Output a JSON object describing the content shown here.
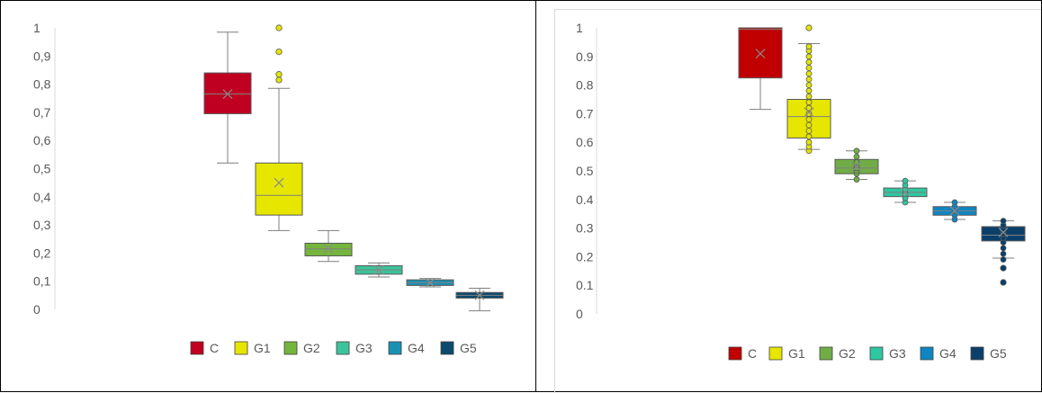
{
  "chart_data": [
    {
      "type": "box",
      "ylim": [
        0,
        1
      ],
      "y_ticks": [
        "0",
        "0,1",
        "0,2",
        "0,3",
        "0,4",
        "0,5",
        "0,6",
        "0,7",
        "0,8",
        "0,9",
        "1"
      ],
      "legend_placement": "bottom",
      "series": [
        {
          "name": "C",
          "color": "#C00020",
          "min": 0.52,
          "q1": 0.695,
          "median": 0.765,
          "mean": 0.765,
          "q3": 0.84,
          "max": 0.985,
          "outliers": []
        },
        {
          "name": "G1",
          "color": "#E6E600",
          "min": 0.28,
          "q1": 0.335,
          "median": 0.405,
          "mean": 0.45,
          "q3": 0.52,
          "max": 0.785,
          "outliers": [
            0.815,
            0.835,
            0.915,
            1.0
          ]
        },
        {
          "name": "G2",
          "color": "#74B53C",
          "min": 0.17,
          "q1": 0.19,
          "median": 0.215,
          "mean": 0.215,
          "q3": 0.235,
          "max": 0.28,
          "outliers": []
        },
        {
          "name": "G3",
          "color": "#3DC49A",
          "min": 0.115,
          "q1": 0.125,
          "median": 0.14,
          "mean": 0.14,
          "q3": 0.155,
          "max": 0.165,
          "outliers": []
        },
        {
          "name": "G4",
          "color": "#1A91B3",
          "min": 0.08,
          "q1": 0.085,
          "median": 0.095,
          "mean": 0.095,
          "q3": 0.105,
          "max": 0.11,
          "outliers": []
        },
        {
          "name": "G5",
          "color": "#0C4A6E",
          "min": -0.005,
          "q1": 0.04,
          "median": 0.05,
          "mean": 0.05,
          "q3": 0.06,
          "max": 0.075,
          "outliers": []
        }
      ]
    },
    {
      "type": "box",
      "ylim": [
        0,
        1
      ],
      "y_ticks": [
        "0",
        "0.1",
        "0.2",
        "0.3",
        "0.4",
        "0.5",
        "0.6",
        "0.7",
        "0.8",
        "0.9",
        "1"
      ],
      "legend_placement": "bottom",
      "series": [
        {
          "name": "C",
          "color": "#C00000",
          "min": 0.715,
          "q1": 0.825,
          "median": 0.995,
          "mean": 0.91,
          "q3": 1.0,
          "max": 1.0,
          "outliers": [],
          "points": []
        },
        {
          "name": "G1",
          "color": "#E6E600",
          "min": 0.575,
          "q1": 0.615,
          "median": 0.69,
          "mean": 0.705,
          "q3": 0.75,
          "max": 0.945,
          "outliers": [
            1.0
          ],
          "points": [
            0.57,
            0.585,
            0.6,
            0.62,
            0.64,
            0.66,
            0.68,
            0.7,
            0.72,
            0.74,
            0.76,
            0.78,
            0.8,
            0.82,
            0.84,
            0.86,
            0.88,
            0.9,
            0.92,
            0.935
          ]
        },
        {
          "name": "G2",
          "color": "#70AD47",
          "min": 0.47,
          "q1": 0.49,
          "median": 0.51,
          "mean": 0.515,
          "q3": 0.54,
          "max": 0.57,
          "outliers": [],
          "points": [
            0.47,
            0.49,
            0.5,
            0.51,
            0.52,
            0.53,
            0.55,
            0.57
          ]
        },
        {
          "name": "G3",
          "color": "#2EC7A0",
          "min": 0.39,
          "q1": 0.41,
          "median": 0.425,
          "mean": 0.425,
          "q3": 0.44,
          "max": 0.465,
          "outliers": [],
          "points": [
            0.39,
            0.405,
            0.42,
            0.435,
            0.45,
            0.465
          ]
        },
        {
          "name": "G4",
          "color": "#0F86C1",
          "min": 0.33,
          "q1": 0.345,
          "median": 0.36,
          "mean": 0.36,
          "q3": 0.375,
          "max": 0.39,
          "outliers": [],
          "points": [
            0.33,
            0.345,
            0.36,
            0.375,
            0.39
          ]
        },
        {
          "name": "G5",
          "color": "#0B3F6A",
          "min": 0.195,
          "q1": 0.255,
          "median": 0.275,
          "mean": 0.285,
          "q3": 0.305,
          "max": 0.325,
          "outliers": [
            0.16,
            0.11
          ],
          "points": [
            0.19,
            0.21,
            0.23,
            0.25,
            0.265,
            0.28,
            0.295,
            0.31,
            0.325
          ]
        }
      ]
    }
  ]
}
